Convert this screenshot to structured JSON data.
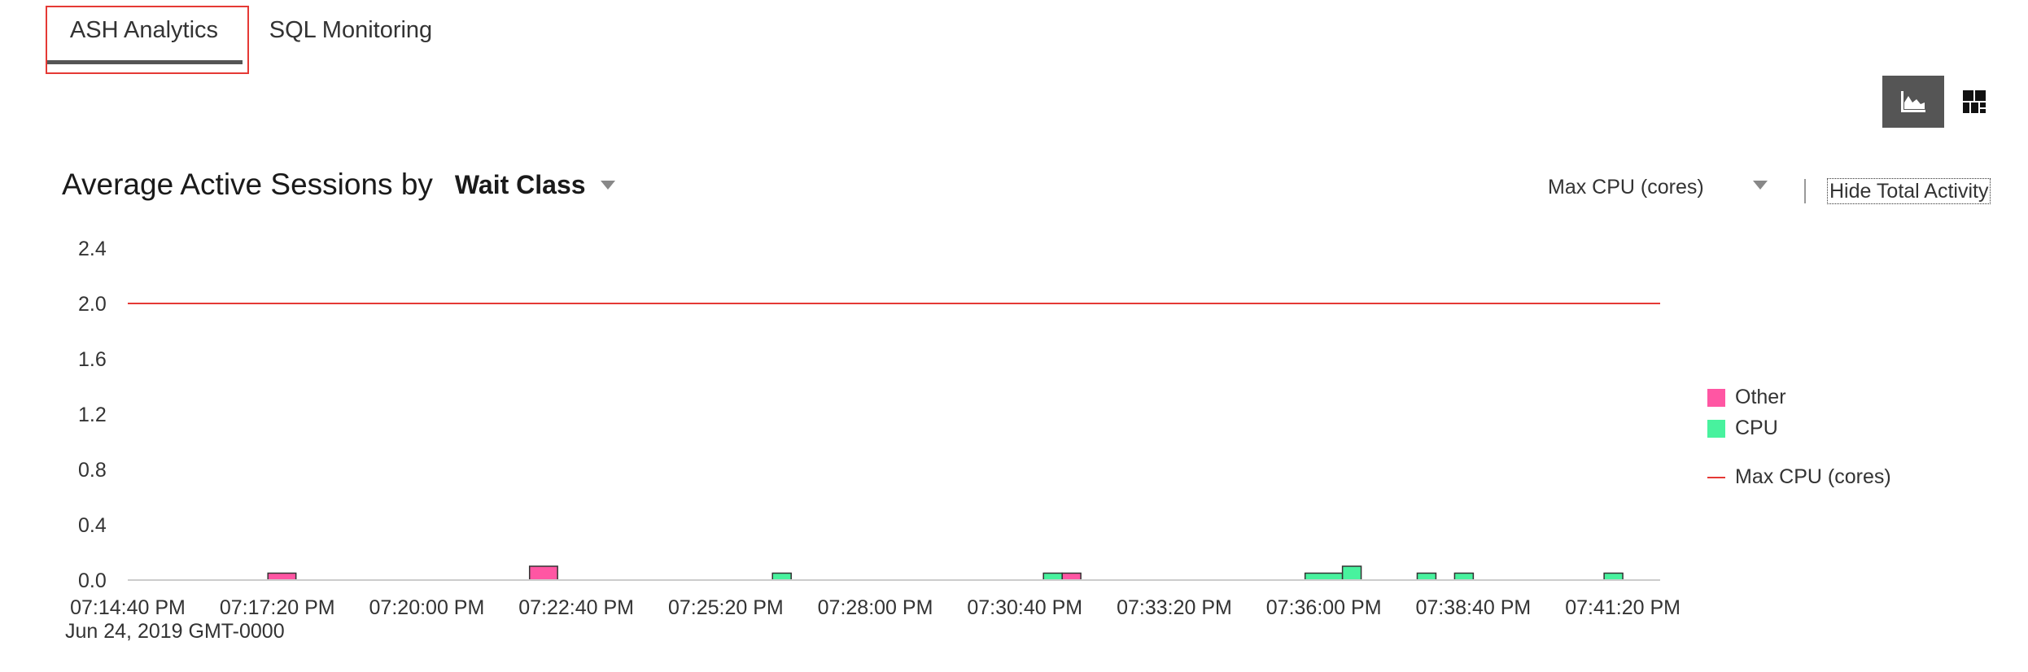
{
  "tabs": [
    {
      "label": "ASH Analytics",
      "selected": true
    },
    {
      "label": "SQL Monitoring",
      "selected": false
    }
  ],
  "view_buttons": {
    "chart_icon": "area-chart-icon",
    "treemap_icon": "treemap-icon"
  },
  "header": {
    "title_prefix": "Average Active Sessions by",
    "dimension": "Wait Class",
    "cpu_reference_select": "Max CPU (cores)",
    "hide_total_link": "Hide Total Activity"
  },
  "colors": {
    "other": "#ff56a3",
    "cpu": "#48f29e",
    "max_cpu": "#e53935",
    "axis": "#cccccc"
  },
  "chart_data": {
    "type": "area",
    "title": "Average Active Sessions by Wait Class",
    "x_labels": [
      "07:14:40 PM",
      "07:17:20 PM",
      "07:20:00 PM",
      "07:22:40 PM",
      "07:25:20 PM",
      "07:28:00 PM",
      "07:30:40 PM",
      "07:33:20 PM",
      "07:36:00 PM",
      "07:38:40 PM",
      "07:41:20 PM"
    ],
    "x_sublabel": "Jun 24, 2019 GMT-0000",
    "xlim": [
      "07:14:40 PM",
      "07:42:00 PM"
    ],
    "y_ticks": [
      "2.4",
      "2.0",
      "1.6",
      "1.2",
      "0.8",
      "0.4",
      "0.0"
    ],
    "ylim": [
      0,
      2.4
    ],
    "series": [
      {
        "name": "Other",
        "color": "#ff56a3",
        "points": [
          {
            "start": "07:17:10 PM",
            "end": "07:17:40 PM",
            "value": 0.05
          },
          {
            "start": "07:21:50 PM",
            "end": "07:22:20 PM",
            "value": 0.1
          },
          {
            "start": "07:31:20 PM",
            "end": "07:31:40 PM",
            "value": 0.05
          }
        ]
      },
      {
        "name": "CPU",
        "color": "#48f29e",
        "points": [
          {
            "start": "07:26:10 PM",
            "end": "07:26:30 PM",
            "value": 0.05
          },
          {
            "start": "07:31:00 PM",
            "end": "07:31:20 PM",
            "value": 0.05
          },
          {
            "start": "07:35:40 PM",
            "end": "07:36:20 PM",
            "value": 0.05
          },
          {
            "start": "07:36:20 PM",
            "end": "07:36:40 PM",
            "value": 0.1
          },
          {
            "start": "07:37:40 PM",
            "end": "07:38:00 PM",
            "value": 0.05
          },
          {
            "start": "07:38:20 PM",
            "end": "07:38:40 PM",
            "value": 0.05
          },
          {
            "start": "07:41:00 PM",
            "end": "07:41:20 PM",
            "value": 0.05
          }
        ]
      }
    ],
    "reference_line": {
      "name": "Max CPU (cores)",
      "value": 2.0,
      "color": "#e53935"
    },
    "legend": [
      {
        "name": "Other",
        "color": "#ff56a3",
        "kind": "box"
      },
      {
        "name": "CPU",
        "color": "#48f29e",
        "kind": "box"
      },
      {
        "name": "Max CPU (cores)",
        "color": "#e53935",
        "kind": "line"
      }
    ],
    "legend_position": "right"
  }
}
